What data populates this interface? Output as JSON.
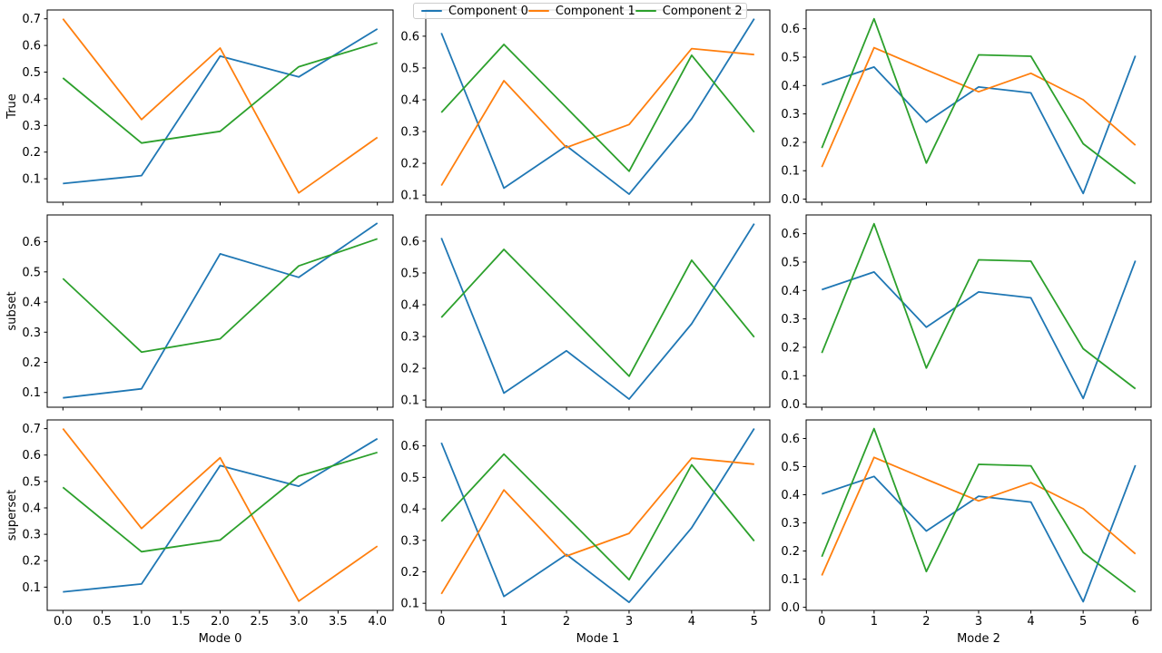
{
  "figure": {
    "background": "#ffffff",
    "frame_color": "#000000",
    "text_color": "#000000"
  },
  "legend": {
    "position": "top-center",
    "entries": [
      {
        "label": "Component 0",
        "color": "#1f77b4"
      },
      {
        "label": "Component 1",
        "color": "#ff7f0e"
      },
      {
        "label": "Component 2",
        "color": "#2ca02c"
      }
    ]
  },
  "chart_data": {
    "type": "line",
    "layout": "3x3-small-multiples",
    "grid": false,
    "series": [
      {
        "name": "Component 0",
        "color": "#1f77b4"
      },
      {
        "name": "Component 1",
        "color": "#ff7f0e"
      },
      {
        "name": "Component 2",
        "color": "#2ca02c"
      }
    ],
    "rows": [
      {
        "label": "True",
        "series_shown": [
          0,
          1,
          2
        ]
      },
      {
        "label": "subset",
        "series_shown": [
          0,
          2
        ]
      },
      {
        "label": "superset",
        "series_shown": [
          0,
          1,
          2
        ]
      }
    ],
    "columns": [
      {
        "xlabel": "Mode 0",
        "x": [
          0,
          1,
          2,
          3,
          4
        ],
        "xlim": [
          -0.2,
          4.2
        ],
        "xticks_plain": [
          0,
          1,
          2,
          3,
          4
        ],
        "xticks_bottom": [
          0,
          0.5,
          1,
          1.5,
          2,
          2.5,
          3,
          3.5,
          4
        ],
        "xtick_labels_bottom": [
          "0.0",
          "0.5",
          "1.0",
          "1.5",
          "2.0",
          "2.5",
          "3.0",
          "3.5",
          "4.0"
        ],
        "values": [
          [
            0.082,
            0.112,
            0.56,
            0.482,
            0.662
          ],
          [
            0.7,
            0.322,
            0.59,
            0.047,
            0.255
          ],
          [
            0.478,
            0.234,
            0.278,
            0.52,
            0.61
          ]
        ],
        "ylim_by_row": [
          [
            0.012,
            0.733
          ],
          [
            0.051,
            0.689
          ],
          [
            0.012,
            0.733
          ]
        ],
        "yticks_by_row": [
          [
            "0.1",
            "0.2",
            "0.3",
            "0.4",
            "0.5",
            "0.6",
            "0.7"
          ],
          [
            "0.1",
            "0.2",
            "0.3",
            "0.4",
            "0.5",
            "0.6"
          ],
          [
            "0.1",
            "0.2",
            "0.3",
            "0.4",
            "0.5",
            "0.6",
            "0.7"
          ]
        ]
      },
      {
        "xlabel": "Mode 1",
        "x": [
          0,
          1,
          2,
          3,
          4,
          5
        ],
        "xlim": [
          -0.25,
          5.25
        ],
        "xticks_plain": [
          0,
          1,
          2,
          3,
          4,
          5
        ],
        "xticks_bottom": [
          0,
          1,
          2,
          3,
          4,
          5
        ],
        "xtick_labels_bottom": [
          "0",
          "1",
          "2",
          "3",
          "4",
          "5"
        ],
        "values": [
          [
            0.61,
            0.122,
            0.255,
            0.103,
            0.34,
            0.655
          ],
          [
            0.13,
            0.46,
            0.25,
            0.322,
            0.561,
            0.542
          ],
          [
            0.36,
            0.574,
            0.375,
            0.175,
            0.54,
            0.298
          ]
        ],
        "ylim_by_row": [
          [
            0.0775,
            0.6825
          ],
          [
            0.0775,
            0.6825
          ],
          [
            0.0775,
            0.6825
          ]
        ],
        "yticks_by_row": [
          [
            "0.1",
            "0.2",
            "0.3",
            "0.4",
            "0.5",
            "0.6"
          ],
          [
            "0.1",
            "0.2",
            "0.3",
            "0.4",
            "0.5",
            "0.6"
          ],
          [
            "0.1",
            "0.2",
            "0.3",
            "0.4",
            "0.5",
            "0.6"
          ]
        ]
      },
      {
        "xlabel": "Mode 2",
        "x": [
          0,
          1,
          2,
          3,
          4,
          5,
          6
        ],
        "xlim": [
          -0.3,
          6.3
        ],
        "xticks_plain": [
          0,
          1,
          2,
          3,
          4,
          5,
          6
        ],
        "xticks_bottom": [
          0,
          1,
          2,
          3,
          4,
          5,
          6
        ],
        "xtick_labels_bottom": [
          "0",
          "1",
          "2",
          "3",
          "4",
          "5",
          "6"
        ],
        "values": [
          [
            0.403,
            0.465,
            0.271,
            0.395,
            0.374,
            0.02,
            0.505
          ],
          [
            0.113,
            0.533,
            0.455,
            0.378,
            0.443,
            0.35,
            0.19
          ],
          [
            0.18,
            0.635,
            0.127,
            0.508,
            0.503,
            0.195,
            0.054
          ]
        ],
        "ylim_by_row": [
          [
            -0.011,
            0.666
          ],
          [
            -0.011,
            0.666
          ],
          [
            -0.011,
            0.666
          ]
        ],
        "yticks_by_row": [
          [
            "0.0",
            "0.1",
            "0.2",
            "0.3",
            "0.4",
            "0.5",
            "0.6"
          ],
          [
            "0.0",
            "0.1",
            "0.2",
            "0.3",
            "0.4",
            "0.5",
            "0.6"
          ],
          [
            "0.0",
            "0.1",
            "0.2",
            "0.3",
            "0.4",
            "0.5",
            "0.6"
          ]
        ]
      }
    ]
  }
}
